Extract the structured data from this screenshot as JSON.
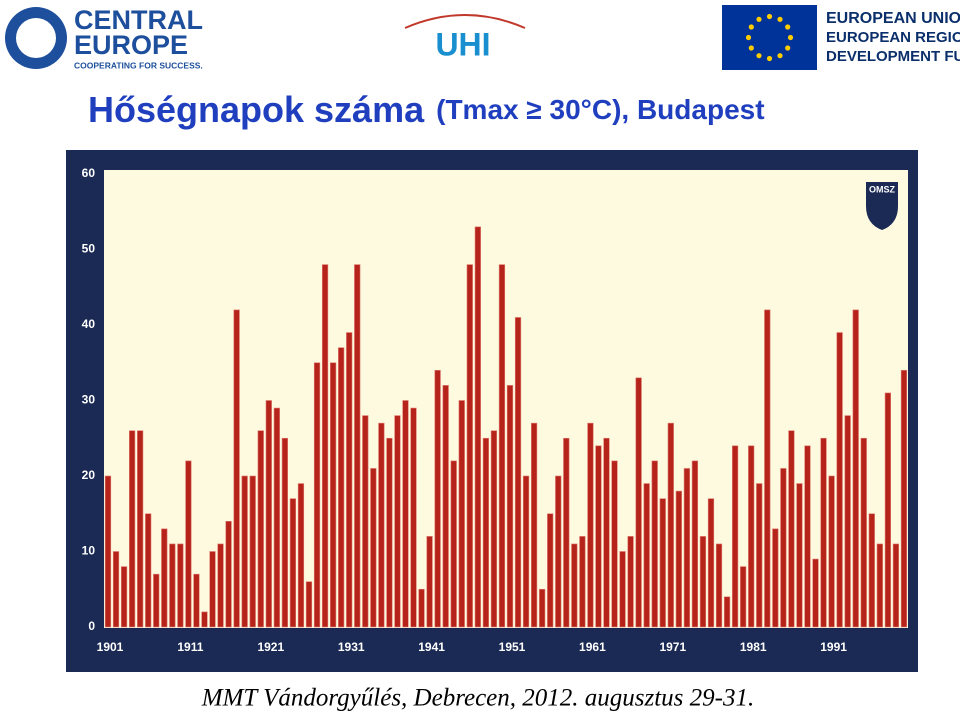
{
  "header": {
    "left_logo": {
      "line1": "CENTRAL",
      "line2": "EUROPE",
      "tagline": "COOPERATING FOR SUCCESS."
    },
    "center_logo": "UHI",
    "right_logo": {
      "line1": "EUROPEAN UNION",
      "line2": "EUROPEAN REGIONAL",
      "line3": "DEVELOPMENT FUND"
    }
  },
  "chart_data": {
    "type": "bar",
    "title": "Hőségnapok száma",
    "subtitle": "(Tmax ≥ 30°C), Budapest",
    "badge": "OMSZ",
    "categories": [
      "1901",
      null,
      null,
      null,
      null,
      null,
      null,
      null,
      null,
      null,
      "1911",
      null,
      null,
      null,
      null,
      null,
      null,
      null,
      null,
      null,
      "1921",
      null,
      null,
      null,
      null,
      null,
      null,
      null,
      null,
      null,
      "1931",
      null,
      null,
      null,
      null,
      null,
      null,
      null,
      null,
      null,
      "1941",
      null,
      null,
      null,
      null,
      null,
      null,
      null,
      null,
      null,
      "1951",
      null,
      null,
      null,
      null,
      null,
      null,
      null,
      null,
      null,
      "1961",
      null,
      null,
      null,
      null,
      null,
      null,
      null,
      null,
      null,
      "1971",
      null,
      null,
      null,
      null,
      null,
      null,
      null,
      null,
      null,
      "1981",
      null,
      null,
      null,
      null,
      null,
      null,
      null,
      null,
      null,
      "1991",
      null,
      null,
      null,
      null,
      null,
      null,
      null,
      null,
      null
    ],
    "values": [
      20,
      10,
      8,
      26,
      26,
      15,
      7,
      13,
      11,
      11,
      22,
      7,
      2,
      10,
      11,
      14,
      42,
      20,
      20,
      26,
      30,
      29,
      25,
      17,
      19,
      6,
      35,
      48,
      35,
      37,
      39,
      48,
      28,
      21,
      27,
      25,
      28,
      30,
      29,
      5,
      12,
      34,
      32,
      22,
      30,
      48,
      53,
      25,
      26,
      48,
      32,
      41,
      20,
      27,
      5,
      15,
      20,
      25,
      11,
      12,
      27,
      24,
      25,
      22,
      10,
      12,
      33,
      19,
      22,
      17,
      27,
      18,
      21,
      22,
      12,
      17,
      11,
      4,
      24,
      8,
      24,
      19,
      42,
      13,
      21,
      26,
      19,
      24,
      9,
      25,
      20,
      39,
      28,
      42,
      25,
      15,
      11,
      31,
      11,
      34
    ],
    "color": "#b5231b",
    "ylim": [
      0,
      60
    ],
    "yticks": [
      0,
      10,
      20,
      30,
      40,
      50,
      60
    ],
    "grid": false
  },
  "footer": "MMT Vándorgyűlés, Debrecen, 2012. augusztus 29-31."
}
